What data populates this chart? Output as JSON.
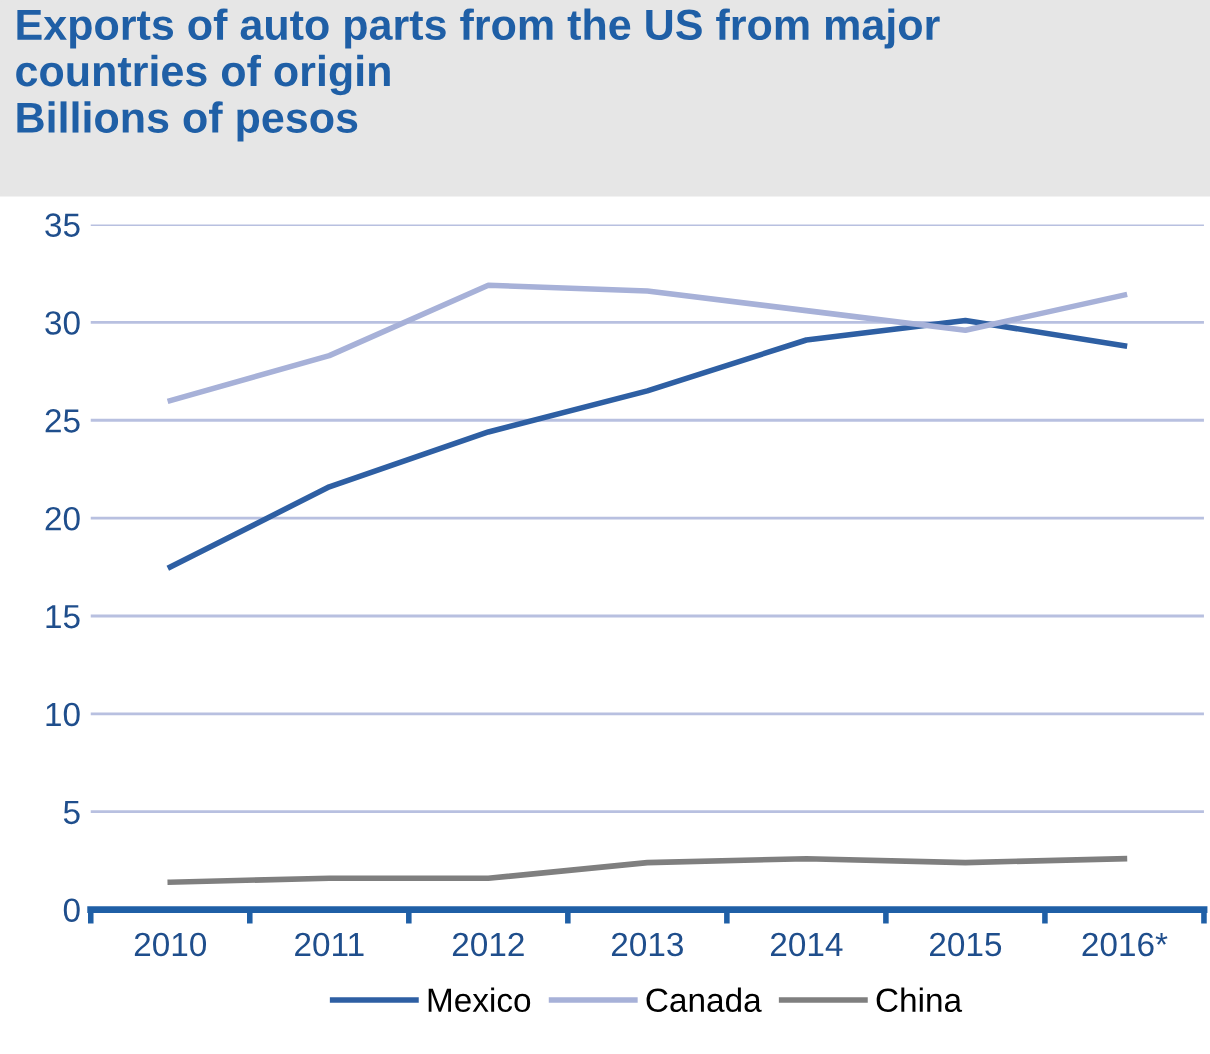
{
  "chart_data": {
    "type": "line",
    "title": "Exports of auto parts from the US from major\ncountries of origin\nBillions of pesos",
    "categories": [
      "2010",
      "2011",
      "2012",
      "2013",
      "2014",
      "2015",
      "2016*"
    ],
    "series": [
      {
        "name": "Mexico",
        "color": "#2e5fa3",
        "values": [
          17.5,
          21.6,
          24.4,
          26.5,
          29.1,
          30.1,
          28.8
        ]
      },
      {
        "name": "Canada",
        "color": "#a7b1d8",
        "values": [
          26.0,
          28.3,
          31.9,
          31.6,
          30.6,
          29.6,
          31.4
        ]
      },
      {
        "name": "China",
        "color": "#7f7f7f",
        "values": [
          1.4,
          1.6,
          1.6,
          2.4,
          2.6,
          2.4,
          2.6
        ]
      }
    ],
    "ylim": [
      0,
      35
    ],
    "yticks": [
      0,
      5,
      10,
      15,
      20,
      25,
      30,
      35
    ],
    "grid": "y",
    "legend": "bottom",
    "marker": "none",
    "line_style": "solid"
  }
}
